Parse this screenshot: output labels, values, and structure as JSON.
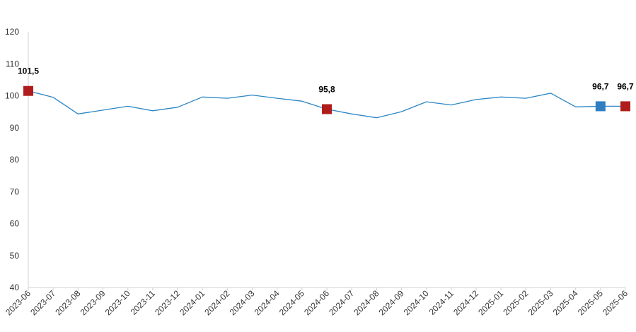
{
  "chart_data": {
    "type": "line",
    "title": "",
    "xlabel": "",
    "ylabel": "",
    "ylim": [
      40,
      120
    ],
    "yticks": [
      "40",
      "50",
      "60",
      "70",
      "80",
      "90",
      "100",
      "110",
      "120"
    ],
    "grid": false,
    "categories": [
      "2023-06",
      "2023-07",
      "2023-08",
      "2023-09",
      "2023-10",
      "2023-11",
      "2023-12",
      "2024-01",
      "2024-02",
      "2024-03",
      "2024-04",
      "2024-05",
      "2024-06",
      "2024-07",
      "2024-08",
      "2024-09",
      "2024-10",
      "2024-11",
      "2024-12",
      "2025-01",
      "2025-02",
      "2025-03",
      "2025-04",
      "2025-05",
      "2025-06"
    ],
    "series": [
      {
        "values": [
          101.5,
          99.5,
          94.3,
          95.5,
          96.7,
          95.3,
          96.4,
          99.6,
          99.2,
          100.2,
          99.2,
          98.3,
          95.8,
          94.3,
          93.1,
          95.0,
          98.1,
          97.1,
          98.8,
          99.6,
          99.2,
          100.8,
          96.5,
          96.7,
          96.7
        ],
        "color": "#2a86c5"
      }
    ],
    "markers": [
      {
        "index": 0,
        "color": "#b01c1c",
        "label": "101,5"
      },
      {
        "index": 12,
        "color": "#b01c1c",
        "label": "95,8"
      },
      {
        "index": 23,
        "color": "#2f7ec1",
        "label": "96,7"
      },
      {
        "index": 24,
        "color": "#b01c1c",
        "label": "96,7"
      }
    ],
    "axis_color": "#d0d0d0"
  }
}
